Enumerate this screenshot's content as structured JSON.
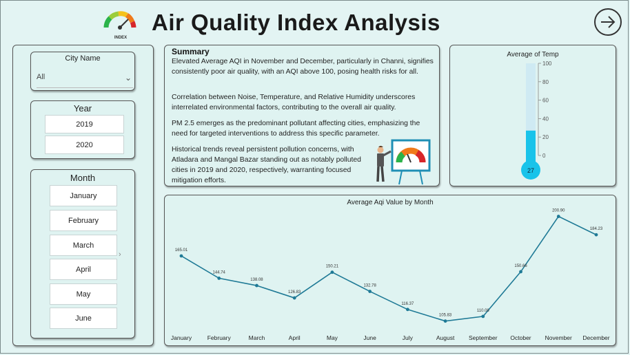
{
  "header": {
    "title": "Air Quality Index Analysis",
    "logo_text": "INDEX"
  },
  "slicers": {
    "city": {
      "label": "City Name",
      "selected": "All"
    },
    "year": {
      "label": "Year",
      "options": [
        "2019",
        "2020"
      ]
    },
    "month": {
      "label": "Month",
      "options": [
        "January",
        "February",
        "March",
        "April",
        "May",
        "June"
      ]
    }
  },
  "summary": {
    "heading": "Summary",
    "paragraphs": [
      "Elevated Average AQI in November and December, particularly in Channi, signifies consistently poor air quality, with an AQI above 100, posing health risks for all.",
      "Correlation between Noise, Temperature, and Relative Humidity underscores interrelated environmental factors, contributing to the overall air quality.",
      "PM 2.5 emerges as the predominant pollutant affecting cities, emphasizing the need for targeted interventions to address this specific parameter.",
      "Historical trends reveal persistent pollution concerns, with Atladara and Mangal Bazar standing out as notably polluted cities in 2019 and 2020, respectively, warranting focused mitigation efforts."
    ]
  },
  "colors": {
    "accent": "#1f7a96",
    "thermo_fill": "#19c3ea",
    "thermo_bg": "#cfeaf3",
    "panel_bg": "#dff3f1",
    "page_bg": "#e3f4f3"
  },
  "chart_data": [
    {
      "type": "gauge",
      "title": "Average of Temp",
      "value": 27,
      "value_label": "27",
      "min": 0,
      "max": 100,
      "ticks": [
        "0",
        "20",
        "40",
        "60",
        "80",
        "100"
      ]
    },
    {
      "type": "line",
      "title": "Average Aqi Value by Month",
      "categories": [
        "January",
        "February",
        "March",
        "April",
        "May",
        "June",
        "July",
        "August",
        "September",
        "October",
        "November",
        "December"
      ],
      "values": [
        165.01,
        144.74,
        138.08,
        126.83,
        150.21,
        132.78,
        116.37,
        105.83,
        110.08,
        150.66,
        200.9,
        184.23
      ],
      "value_labels": [
        "165.01",
        "144.74",
        "138.08",
        "126.83",
        "150.21",
        "132.78",
        "116.37",
        "105.83",
        "110.08",
        "150.66",
        "200.90",
        "184.23"
      ],
      "xlabel": "",
      "ylabel": ""
    }
  ]
}
